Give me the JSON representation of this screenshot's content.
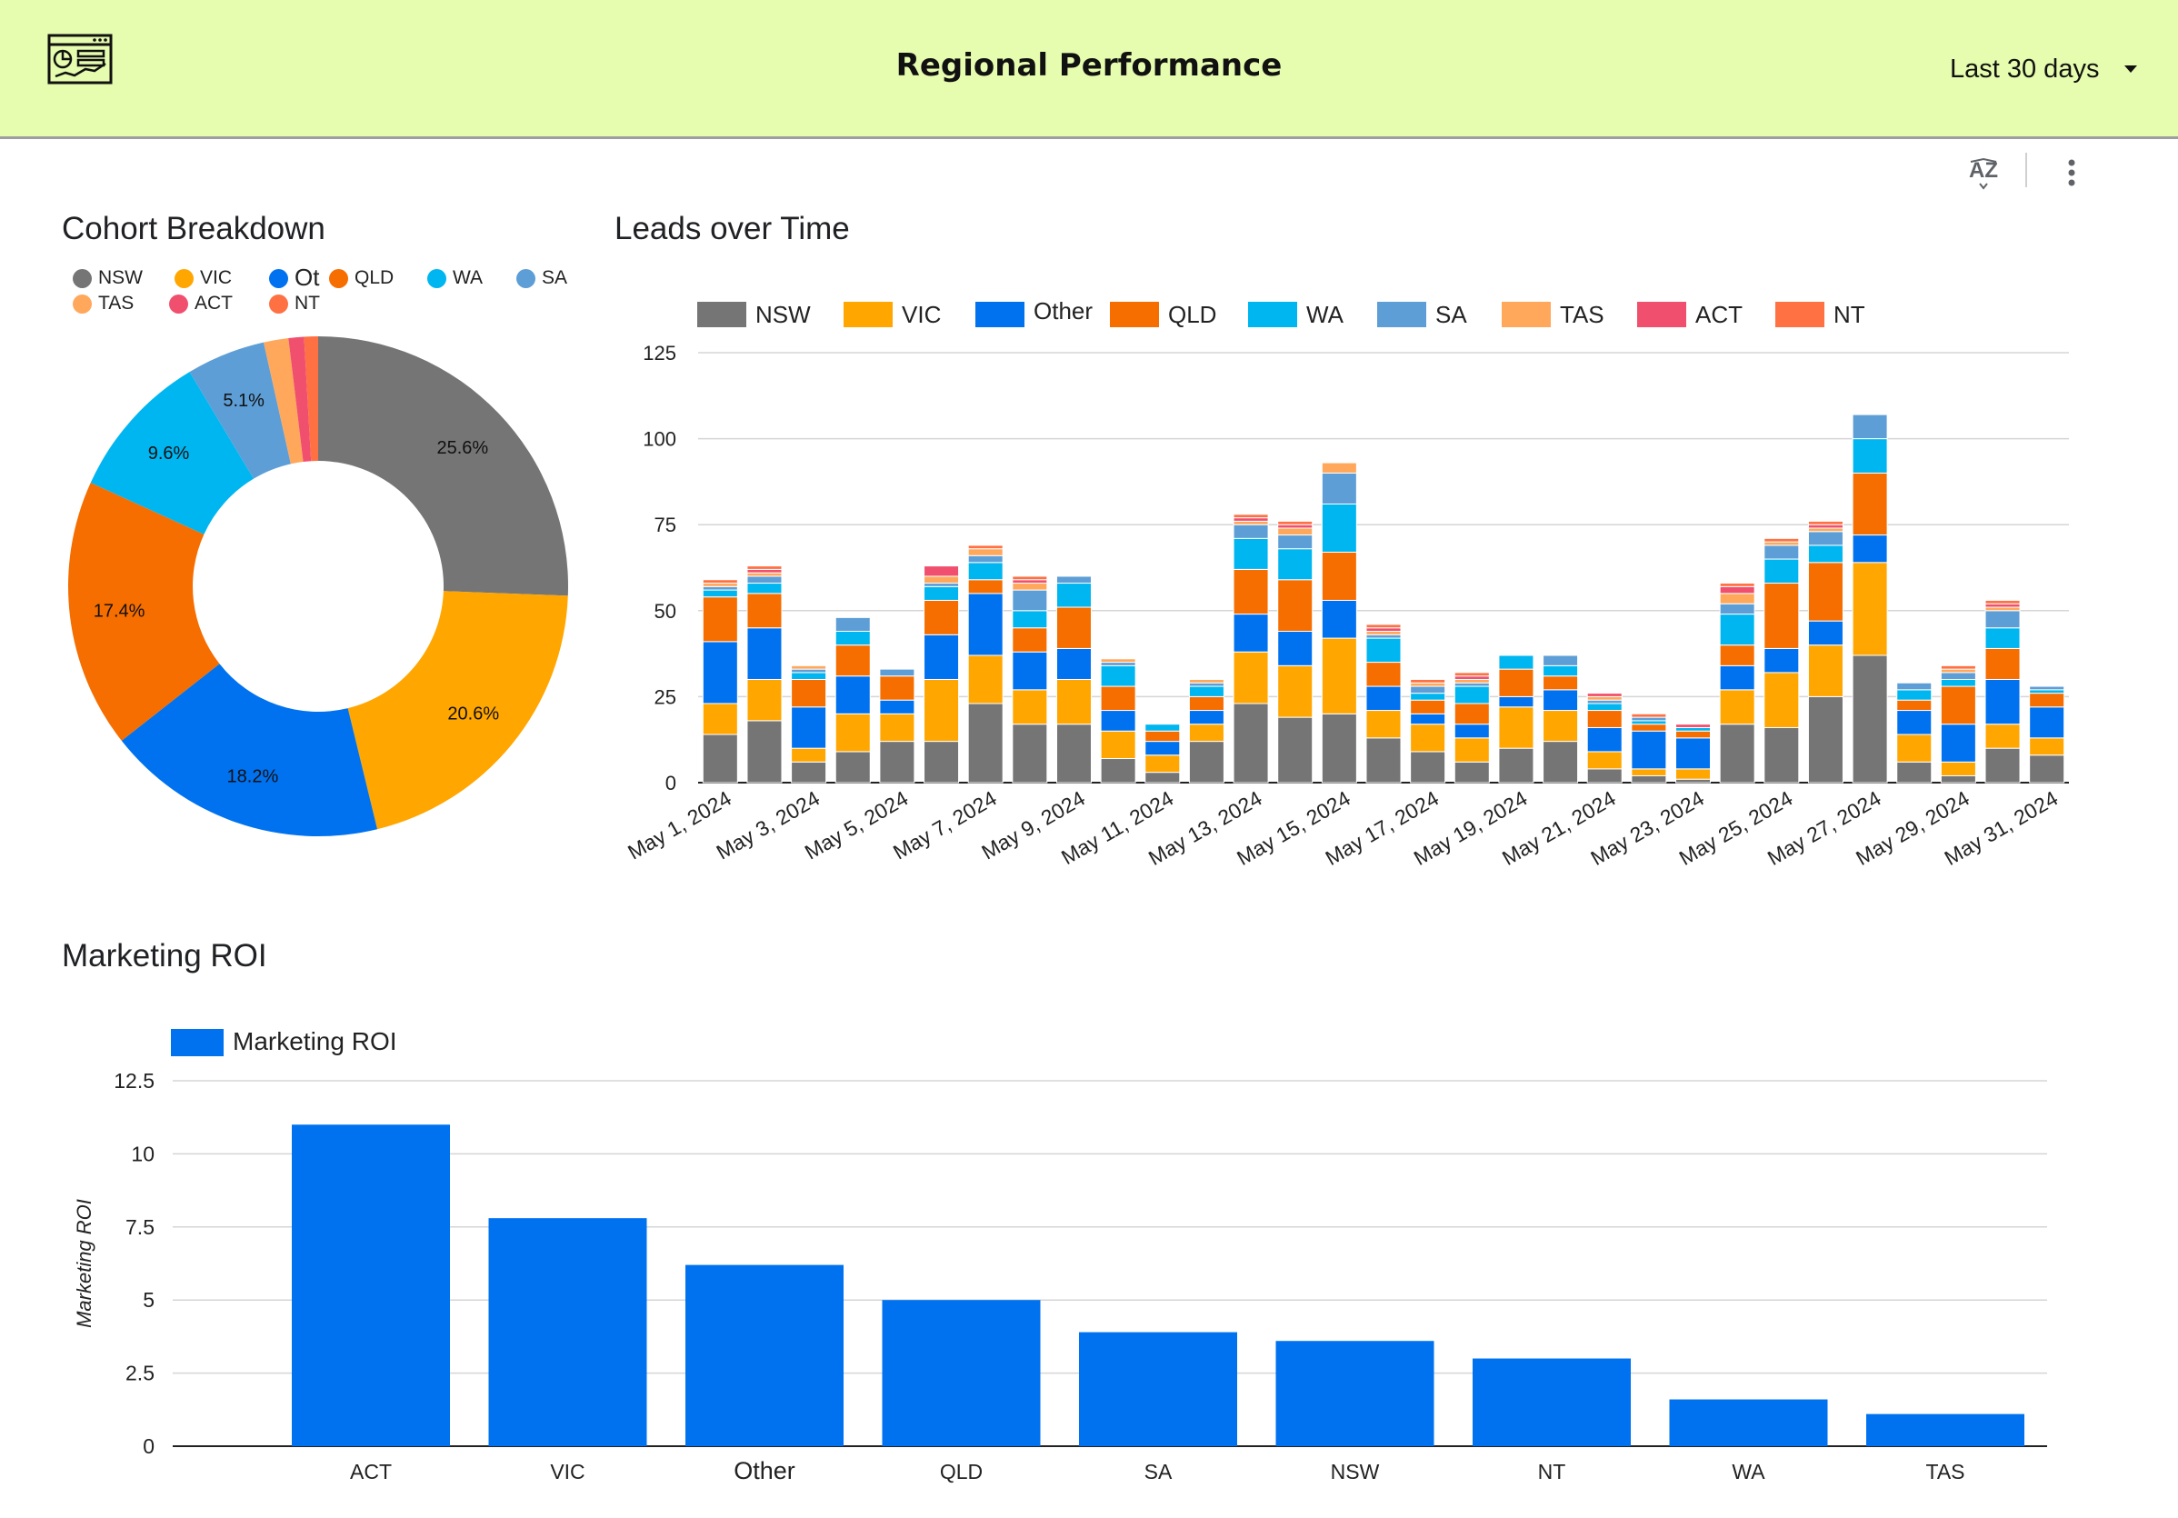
{
  "header": {
    "title": "Regional Performance",
    "date_range": "Last 30 days"
  },
  "icons": {
    "logo": "dashboard-logo-icon",
    "sort": "sort-az-icon",
    "more": "more-vert-icon"
  },
  "colors": {
    "header_bg": "#e6fcae",
    "NSW": "#757575",
    "VIC": "#ffa600",
    "Other": "#0072f0",
    "QLD": "#f66d00",
    "WA": "#00b6f0",
    "SA": "#5e9ed6",
    "TAS": "#ffa85c",
    "ACT": "#f0506e",
    "NT": "#ff7043"
  },
  "donut": {
    "title": "Cohort Breakdown",
    "legend": [
      "NSW",
      "VIC",
      "Ot",
      "QLD",
      "WA",
      "SA",
      "TAS",
      "ACT",
      "NT"
    ]
  },
  "stacked": {
    "title": "Leads over Time",
    "legend": [
      "NSW",
      "VIC",
      "Other",
      "QLD",
      "WA",
      "SA",
      "TAS",
      "ACT",
      "NT"
    ]
  },
  "roi": {
    "title": "Marketing ROI",
    "legend": "Marketing ROI"
  },
  "chart_data": [
    {
      "type": "pie",
      "title": "Cohort Breakdown",
      "hole": true,
      "categories": [
        "NSW",
        "VIC",
        "Other",
        "QLD",
        "WA",
        "SA",
        "TAS",
        "ACT",
        "NT"
      ],
      "values": [
        25.6,
        20.6,
        18.2,
        17.4,
        9.6,
        5.1,
        1.6,
        1.0,
        0.9
      ],
      "labels": [
        "25.6%",
        "20.6%",
        "18.2%",
        "17.4%",
        "9.6%",
        "5.1%",
        "",
        "",
        ""
      ]
    },
    {
      "type": "bar",
      "stacked": true,
      "title": "Leads over Time",
      "ylim": [
        0,
        125
      ],
      "yticks": [
        0,
        25,
        50,
        75,
        100,
        125
      ],
      "grid": true,
      "legend_position": "top",
      "x": [
        "May 1, 2024",
        "May 2, 2024",
        "May 3, 2024",
        "May 4, 2024",
        "May 5, 2024",
        "May 6, 2024",
        "May 7, 2024",
        "May 8, 2024",
        "May 9, 2024",
        "May 10, 2024",
        "May 11, 2024",
        "May 12, 2024",
        "May 13, 2024",
        "May 14, 2024",
        "May 15, 2024",
        "May 16, 2024",
        "May 17, 2024",
        "May 18, 2024",
        "May 19, 2024",
        "May 20, 2024",
        "May 21, 2024",
        "May 22, 2024",
        "May 23, 2024",
        "May 24, 2024",
        "May 25, 2024",
        "May 26, 2024",
        "May 27, 2024",
        "May 28, 2024",
        "May 29, 2024",
        "May 30, 2024",
        "May 31, 2024"
      ],
      "xtick_labels": [
        "May 1, 2024",
        "May 3, 2024",
        "May 5, 2024",
        "May 7, 2024",
        "May 9, 2024",
        "May 11, 2024",
        "May 13, 2024",
        "May 15, 2024",
        "May 17, 2024",
        "May 19, 2024",
        "May 21, 2024",
        "May 23, 2024",
        "May 25, 2024",
        "May 27, 2024",
        "May 29, 2024",
        "May 31, 2024"
      ],
      "series": [
        {
          "name": "NSW",
          "values": [
            14,
            18,
            6,
            9,
            12,
            12,
            23,
            17,
            17,
            7,
            3,
            12,
            23,
            19,
            20,
            13,
            9,
            6,
            10,
            12,
            4,
            2,
            1,
            17,
            16,
            25,
            37,
            6,
            2,
            10,
            8
          ]
        },
        {
          "name": "VIC",
          "values": [
            9,
            12,
            4,
            11,
            8,
            18,
            14,
            10,
            13,
            8,
            5,
            5,
            15,
            15,
            22,
            8,
            8,
            7,
            12,
            9,
            5,
            2,
            3,
            10,
            16,
            15,
            27,
            8,
            4,
            7,
            5
          ]
        },
        {
          "name": "Other",
          "values": [
            18,
            15,
            12,
            11,
            4,
            13,
            18,
            11,
            9,
            6,
            4,
            4,
            11,
            10,
            11,
            7,
            3,
            4,
            3,
            6,
            7,
            11,
            9,
            7,
            7,
            7,
            8,
            7,
            11,
            13,
            9
          ]
        },
        {
          "name": "QLD",
          "values": [
            13,
            10,
            8,
            9,
            7,
            10,
            4,
            7,
            12,
            7,
            3,
            4,
            13,
            15,
            14,
            7,
            4,
            6,
            8,
            4,
            5,
            2,
            2,
            6,
            19,
            17,
            18,
            3,
            11,
            9,
            4
          ]
        },
        {
          "name": "WA",
          "values": [
            2,
            3,
            2,
            4,
            0,
            4,
            5,
            5,
            7,
            6,
            2,
            3,
            9,
            9,
            14,
            7,
            2,
            5,
            4,
            3,
            2,
            1,
            1,
            9,
            7,
            5,
            10,
            3,
            2,
            6,
            1
          ]
        },
        {
          "name": "SA",
          "values": [
            1,
            2,
            1,
            4,
            2,
            1,
            2,
            6,
            2,
            1,
            0,
            1,
            4,
            4,
            9,
            1,
            2,
            1,
            0,
            3,
            1,
            1,
            0,
            3,
            4,
            4,
            7,
            2,
            2,
            5,
            1
          ]
        },
        {
          "name": "TAS",
          "values": [
            1,
            1,
            1,
            0,
            0,
            2,
            2,
            2,
            0,
            1,
            0,
            1,
            1,
            2,
            3,
            1,
            1,
            1,
            0,
            0,
            1,
            0,
            0,
            3,
            1,
            1,
            0,
            0,
            1,
            1,
            0
          ]
        },
        {
          "name": "ACT",
          "values": [
            0,
            1,
            0,
            0,
            0,
            3,
            0,
            1,
            0,
            0,
            0,
            0,
            1,
            1,
            0,
            1,
            0,
            1,
            0,
            0,
            1,
            0,
            1,
            2,
            0,
            1,
            0,
            0,
            0,
            1,
            0
          ]
        },
        {
          "name": "NT",
          "values": [
            1,
            1,
            0,
            0,
            0,
            0,
            1,
            1,
            0,
            0,
            0,
            0,
            1,
            1,
            0,
            1,
            1,
            1,
            0,
            0,
            0,
            1,
            0,
            1,
            1,
            1,
            0,
            0,
            1,
            1,
            0
          ]
        }
      ]
    },
    {
      "type": "bar",
      "title": "Marketing ROI",
      "ylabel": "Marketing ROI",
      "ylim": [
        0,
        12.5
      ],
      "yticks": [
        "0",
        "2.5",
        "5",
        "7.5",
        "10",
        "12.5"
      ],
      "grid": true,
      "legend_position": "top",
      "categories": [
        "ACT",
        "VIC",
        "Other",
        "QLD",
        "SA",
        "NSW",
        "NT",
        "WA",
        "TAS"
      ],
      "series": [
        {
          "name": "Marketing ROI",
          "values": [
            11.0,
            7.8,
            6.2,
            5.0,
            3.9,
            3.6,
            3.0,
            1.6,
            1.1
          ]
        }
      ]
    }
  ]
}
